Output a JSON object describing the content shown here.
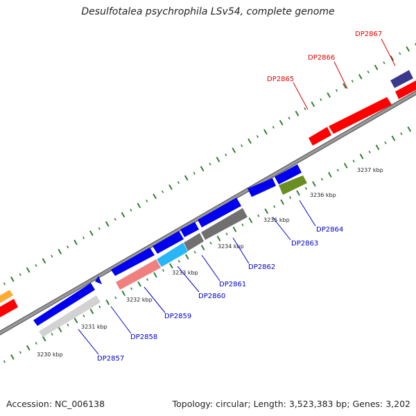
{
  "title": "Desulfotalea psychrophila LSv54, complete genome",
  "footer": {
    "accession": "Accession: NC_006138",
    "summary": "Topology: circular; Length: 3,523,383 bp; Genes: 3,202"
  },
  "colors": {
    "backbone": "#8c8c8c",
    "tick": "#2e7d32",
    "forward_gene": "#ff0000",
    "reverse_gene": "#0000ee",
    "label_forward": "#dd0000",
    "label_reverse": "#0000cc"
  },
  "tick_labels": [
    {
      "text": "3230 kbp"
    },
    {
      "text": "3231 kbp"
    },
    {
      "text": "3232 kbp"
    },
    {
      "text": "3233 kbp"
    },
    {
      "text": "3234 kbp"
    },
    {
      "text": "3235 kbp"
    },
    {
      "text": "3236 kbp"
    },
    {
      "text": "3237 kbp"
    }
  ],
  "genes": [
    {
      "id": "DP2857",
      "strand": "reverse",
      "label": "DP2857"
    },
    {
      "id": "DP2858",
      "strand": "reverse",
      "label": "DP2858"
    },
    {
      "id": "DP2859",
      "strand": "reverse",
      "label": "DP2859"
    },
    {
      "id": "DP2860",
      "strand": "reverse",
      "label": "DP2860"
    },
    {
      "id": "DP2861",
      "strand": "reverse",
      "label": "DP2861"
    },
    {
      "id": "DP2862",
      "strand": "reverse",
      "label": "DP2862"
    },
    {
      "id": "DP2863",
      "strand": "reverse",
      "label": "DP2863"
    },
    {
      "id": "DP2864",
      "strand": "reverse",
      "label": "DP2864"
    },
    {
      "id": "DP2865",
      "strand": "forward",
      "label": "DP2865"
    },
    {
      "id": "DP2866",
      "strand": "forward",
      "label": "DP2866"
    },
    {
      "id": "DP2867",
      "strand": "forward",
      "label": "DP2867"
    }
  ]
}
